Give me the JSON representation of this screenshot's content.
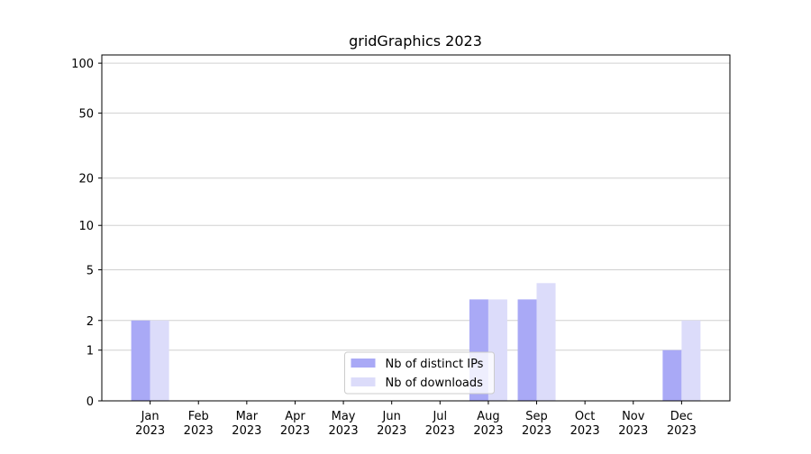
{
  "chart_data": {
    "type": "bar",
    "title": "gridGraphics 2023",
    "categories": [
      "Jan\n2023",
      "Feb\n2023",
      "Mar\n2023",
      "Apr\n2023",
      "May\n2023",
      "Jun\n2023",
      "Jul\n2023",
      "Aug\n2023",
      "Sep\n2023",
      "Oct\n2023",
      "Nov\n2023",
      "Dec\n2023"
    ],
    "series": [
      {
        "name": "Nb of distinct IPs",
        "color": "#a9a9f6",
        "values": [
          2,
          0,
          0,
          0,
          0,
          0,
          0,
          3,
          3,
          0,
          0,
          1
        ]
      },
      {
        "name": "Nb of downloads",
        "color": "#dcdcfa",
        "values": [
          2,
          0,
          0,
          0,
          0,
          0,
          0,
          3,
          4,
          0,
          0,
          2
        ]
      }
    ],
    "yscale": "symlog",
    "ylim": [
      0,
      112
    ],
    "yticks": [
      0,
      1,
      2,
      5,
      10,
      20,
      50,
      100
    ],
    "grid": true,
    "legend": "lower center"
  }
}
